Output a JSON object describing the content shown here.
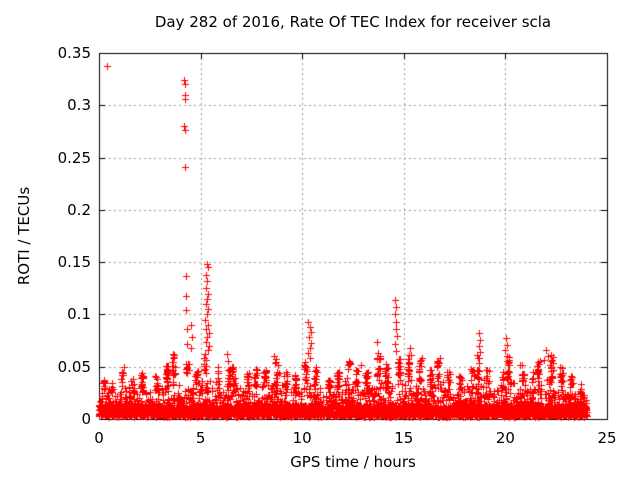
{
  "chart_data": {
    "type": "scatter",
    "title": "Day 282 of 2016, Rate Of TEC Index for receiver scla",
    "xlabel": "GPS time / hours",
    "ylabel": "ROTI / TECUs",
    "xlim": [
      0,
      25
    ],
    "ylim": [
      0,
      0.35
    ],
    "xticks": [
      {
        "value": 0,
        "label": "0"
      },
      {
        "value": 5,
        "label": "5"
      },
      {
        "value": 10,
        "label": "10"
      },
      {
        "value": 15,
        "label": "15"
      },
      {
        "value": 20,
        "label": "20"
      },
      {
        "value": 25,
        "label": "25"
      }
    ],
    "yticks": [
      {
        "value": 0,
        "label": "0"
      },
      {
        "value": 0.05,
        "label": "0.05"
      },
      {
        "value": 0.1,
        "label": "0.1"
      },
      {
        "value": 0.15,
        "label": "0.15"
      },
      {
        "value": 0.2,
        "label": "0.2"
      },
      {
        "value": 0.25,
        "label": "0.25"
      },
      {
        "value": 0.3,
        "label": "0.3"
      },
      {
        "value": 0.35,
        "label": "0.35"
      }
    ],
    "grid": true,
    "legend_position": "none",
    "marker": "plus",
    "marker_color": "#ff0000",
    "grid_color": "#9c9c9c",
    "axis_color": "#000000",
    "background": "#ffffff",
    "x_data_range": [
      0,
      24
    ],
    "baseline_band": {
      "min": 0.002,
      "max": 0.015,
      "points_per_half_hour": 110
    },
    "envelope_half_hour_max": [
      0.046,
      0.036,
      0.05,
      0.038,
      0.044,
      0.042,
      0.052,
      0.062,
      0.055,
      0.048,
      0.06,
      0.05,
      0.048,
      0.052,
      0.045,
      0.048,
      0.055,
      0.058,
      0.045,
      0.042,
      0.055,
      0.05,
      0.04,
      0.045,
      0.058,
      0.05,
      0.048,
      0.065,
      0.055,
      0.06,
      0.062,
      0.058,
      0.048,
      0.058,
      0.048,
      0.042,
      0.05,
      0.062,
      0.05,
      0.046,
      0.06,
      0.052,
      0.046,
      0.058,
      0.062,
      0.05,
      0.042,
      0.036
    ],
    "outliers": [
      [
        0.4,
        0.338
      ],
      [
        4.2,
        0.324
      ],
      [
        4.22,
        0.32
      ],
      [
        4.24,
        0.31
      ],
      [
        4.23,
        0.306
      ],
      [
        4.2,
        0.28
      ],
      [
        4.23,
        0.276
      ],
      [
        4.21,
        0.241
      ],
      [
        4.26,
        0.137
      ],
      [
        4.3,
        0.118
      ],
      [
        4.28,
        0.104
      ],
      [
        4.33,
        0.086
      ],
      [
        4.31,
        0.072
      ],
      [
        4.55,
        0.09
      ],
      [
        4.58,
        0.078
      ],
      [
        4.52,
        0.068
      ],
      [
        5.3,
        0.148
      ],
      [
        5.37,
        0.145
      ],
      [
        5.28,
        0.138
      ],
      [
        5.33,
        0.132
      ],
      [
        5.25,
        0.125
      ],
      [
        5.35,
        0.12
      ],
      [
        5.3,
        0.115
      ],
      [
        5.26,
        0.11
      ],
      [
        5.38,
        0.105
      ],
      [
        5.31,
        0.1
      ],
      [
        5.23,
        0.095
      ],
      [
        5.36,
        0.09
      ],
      [
        5.29,
        0.086
      ],
      [
        5.4,
        0.082
      ],
      [
        5.33,
        0.078
      ],
      [
        5.27,
        0.074
      ],
      [
        5.42,
        0.07
      ],
      [
        5.35,
        0.066
      ],
      [
        5.2,
        0.062
      ],
      [
        6.3,
        0.062
      ],
      [
        6.35,
        0.055
      ],
      [
        8.6,
        0.06
      ],
      [
        8.65,
        0.054
      ],
      [
        10.3,
        0.093
      ],
      [
        10.36,
        0.088
      ],
      [
        10.42,
        0.083
      ],
      [
        10.33,
        0.078
      ],
      [
        10.45,
        0.073
      ],
      [
        10.38,
        0.068
      ],
      [
        10.31,
        0.063
      ],
      [
        10.4,
        0.058
      ],
      [
        12.3,
        0.055
      ],
      [
        12.9,
        0.052
      ],
      [
        13.7,
        0.074
      ],
      [
        13.75,
        0.063
      ],
      [
        13.68,
        0.057
      ],
      [
        14.58,
        0.114
      ],
      [
        14.62,
        0.107
      ],
      [
        14.56,
        0.1
      ],
      [
        14.64,
        0.093
      ],
      [
        14.6,
        0.086
      ],
      [
        14.66,
        0.079
      ],
      [
        14.57,
        0.072
      ],
      [
        14.63,
        0.065
      ],
      [
        15.3,
        0.068
      ],
      [
        15.36,
        0.061
      ],
      [
        15.9,
        0.058
      ],
      [
        16.8,
        0.058
      ],
      [
        18.7,
        0.082
      ],
      [
        18.73,
        0.076
      ],
      [
        18.68,
        0.07
      ],
      [
        18.75,
        0.064
      ],
      [
        18.71,
        0.058
      ],
      [
        20.02,
        0.077
      ],
      [
        20.08,
        0.071
      ],
      [
        20.0,
        0.066
      ],
      [
        20.1,
        0.06
      ],
      [
        20.7,
        0.052
      ],
      [
        21.9,
        0.056
      ],
      [
        22.0,
        0.066
      ],
      [
        22.1,
        0.06
      ],
      [
        22.2,
        0.052
      ]
    ]
  }
}
